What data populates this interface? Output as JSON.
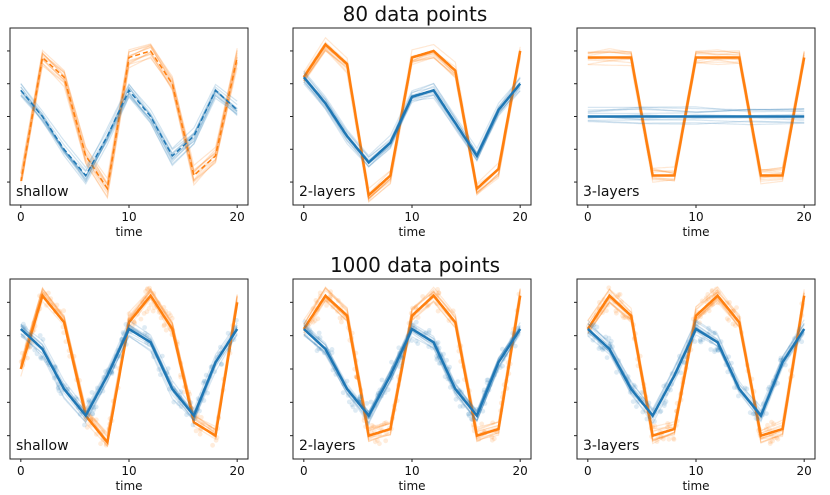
{
  "row_titles": [
    "80 data points",
    "1000 data points"
  ],
  "colors": {
    "series1": "#ff7f0e",
    "series2": "#1f77b4"
  },
  "chart_data": [
    {
      "type": "line",
      "panel_label": "shallow",
      "xlabel": "time",
      "xticks": [
        0,
        10,
        20
      ],
      "xlim": [
        -1,
        21
      ],
      "ylim": [
        -1.35,
        1.35
      ],
      "series": [
        {
          "name": "orange truth",
          "style": "dashed",
          "x": [
            0,
            2,
            4,
            6,
            8,
            10,
            12,
            14,
            16,
            18,
            20
          ],
          "y": [
            -1.0,
            0.9,
            0.6,
            -0.6,
            -1.1,
            0.9,
            1.0,
            0.5,
            -0.9,
            -0.6,
            0.9
          ]
        },
        {
          "name": "blue truth",
          "style": "dashed",
          "x": [
            0,
            2,
            4,
            6,
            8,
            10,
            12,
            14,
            16,
            18,
            20
          ],
          "y": [
            0.4,
            0.0,
            -0.5,
            -0.9,
            -0.3,
            0.4,
            0.0,
            -0.6,
            -0.3,
            0.4,
            0.1
          ]
        }
      ],
      "band": "samples"
    },
    {
      "type": "line",
      "panel_label": "2-layers",
      "xlabel": "time",
      "xticks": [
        0,
        10,
        20
      ],
      "xlim": [
        -1,
        21
      ],
      "ylim": [
        -1.35,
        1.35
      ],
      "series": [
        {
          "name": "orange",
          "style": "solid",
          "x": [
            0,
            2,
            4,
            6,
            8,
            10,
            12,
            14,
            16,
            18,
            20
          ],
          "y": [
            0.6,
            1.1,
            0.8,
            -1.2,
            -0.9,
            0.9,
            1.0,
            0.7,
            -1.1,
            -0.8,
            1.0
          ]
        },
        {
          "name": "blue",
          "style": "solid",
          "x": [
            0,
            2,
            4,
            6,
            8,
            10,
            12,
            14,
            16,
            18,
            20
          ],
          "y": [
            0.6,
            0.2,
            -0.3,
            -0.7,
            -0.4,
            0.3,
            0.4,
            -0.1,
            -0.6,
            0.1,
            0.5
          ]
        }
      ]
    },
    {
      "type": "line",
      "panel_label": "3-layers",
      "xlabel": "time",
      "xticks": [
        0,
        10,
        20
      ],
      "xlim": [
        -1,
        21
      ],
      "ylim": [
        -1.35,
        1.35
      ],
      "series": [
        {
          "name": "orange",
          "style": "solid",
          "x": [
            0,
            2,
            4,
            6,
            8,
            10,
            12,
            14,
            16,
            18,
            20
          ],
          "y": [
            0.9,
            0.9,
            0.9,
            -0.9,
            -0.9,
            0.9,
            0.9,
            0.9,
            -0.9,
            -0.9,
            0.9
          ]
        },
        {
          "name": "blue",
          "style": "solid",
          "x": [
            0,
            5,
            10,
            15,
            20
          ],
          "y": [
            0,
            0,
            0,
            0,
            0
          ]
        }
      ]
    },
    {
      "type": "line",
      "panel_label": "shallow",
      "xlabel": "time",
      "xticks": [
        0,
        10,
        20
      ],
      "xlim": [
        -1,
        21
      ],
      "ylim": [
        -1.35,
        1.35
      ],
      "series": [
        {
          "name": "orange",
          "style": "solid",
          "x": [
            0,
            2,
            4,
            6,
            8,
            10,
            12,
            14,
            16,
            18,
            20
          ],
          "y": [
            0.0,
            1.1,
            0.7,
            -0.7,
            -1.1,
            0.7,
            1.1,
            0.6,
            -0.8,
            -1.0,
            1.0
          ]
        },
        {
          "name": "blue",
          "style": "solid",
          "x": [
            0,
            2,
            4,
            6,
            8,
            10,
            12,
            14,
            16,
            18,
            20
          ],
          "y": [
            0.6,
            0.3,
            -0.3,
            -0.7,
            -0.1,
            0.6,
            0.4,
            -0.3,
            -0.7,
            0.1,
            0.6
          ]
        }
      ],
      "scatter": true
    },
    {
      "type": "line",
      "panel_label": "2-layers",
      "xlabel": "time",
      "xticks": [
        0,
        10,
        20
      ],
      "xlim": [
        -1,
        21
      ],
      "ylim": [
        -1.35,
        1.35
      ],
      "series": [
        {
          "name": "orange",
          "style": "solid",
          "x": [
            0,
            2,
            4,
            6,
            8,
            10,
            12,
            14,
            16,
            18,
            20
          ],
          "y": [
            0.6,
            1.1,
            0.8,
            -1.0,
            -0.9,
            0.8,
            1.1,
            0.7,
            -1.0,
            -0.9,
            1.1
          ]
        },
        {
          "name": "blue",
          "style": "solid",
          "x": [
            0,
            2,
            4,
            6,
            8,
            10,
            12,
            14,
            16,
            18,
            20
          ],
          "y": [
            0.6,
            0.3,
            -0.3,
            -0.7,
            -0.1,
            0.6,
            0.4,
            -0.3,
            -0.7,
            0.1,
            0.6
          ]
        }
      ],
      "scatter": true
    },
    {
      "type": "line",
      "panel_label": "3-layers",
      "xlabel": "time",
      "xticks": [
        0,
        10,
        20
      ],
      "xlim": [
        -1,
        21
      ],
      "ylim": [
        -1.35,
        1.35
      ],
      "series": [
        {
          "name": "orange",
          "style": "solid",
          "x": [
            0,
            2,
            4,
            6,
            8,
            10,
            12,
            14,
            16,
            18,
            20
          ],
          "y": [
            0.6,
            1.1,
            0.8,
            -1.0,
            -0.9,
            0.8,
            1.1,
            0.7,
            -1.0,
            -0.9,
            1.1
          ]
        },
        {
          "name": "blue",
          "style": "solid",
          "x": [
            0,
            2,
            4,
            6,
            8,
            10,
            12,
            14,
            16,
            18,
            20
          ],
          "y": [
            0.6,
            0.3,
            -0.3,
            -0.7,
            -0.1,
            0.6,
            0.4,
            -0.3,
            -0.7,
            0.1,
            0.6
          ]
        }
      ],
      "scatter": true
    }
  ]
}
